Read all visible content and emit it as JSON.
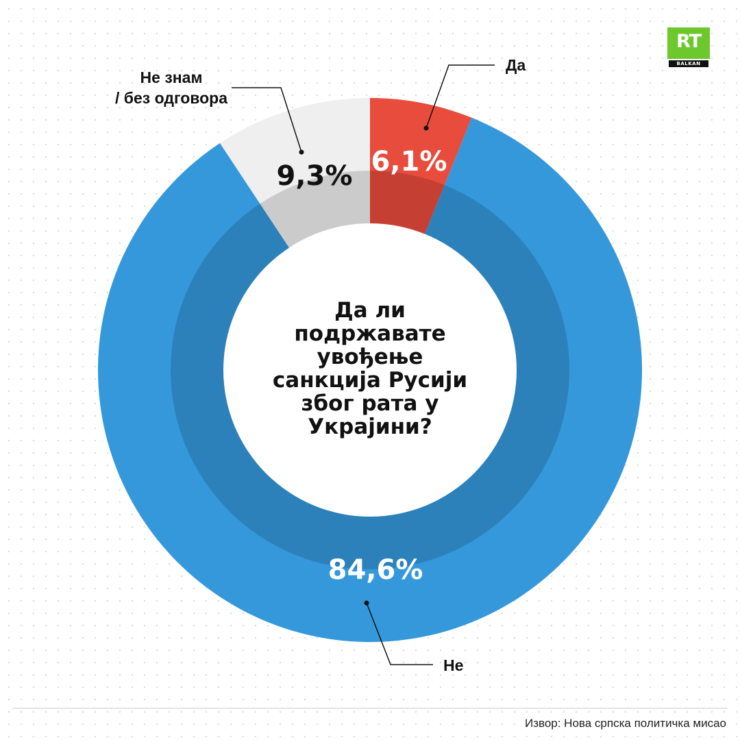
{
  "chart_data": {
    "type": "pie",
    "variant": "donut",
    "title": "Да ли подржавате увођење санкција Русији због рата у Украјини?",
    "title_lines": [
      "Да ли",
      "подржавате",
      "увођење",
      "санкција Русији",
      "због рата у",
      "Украјини?"
    ],
    "slices": [
      {
        "label": "Да",
        "value": 6.1,
        "value_label": "6,1%",
        "color": "#e84c3d"
      },
      {
        "label": "Не",
        "value": 84.6,
        "value_label": "84,6%",
        "color": "#3498db"
      },
      {
        "label_lines": [
          "Не знам",
          "/ без одговора"
        ],
        "value": 9.3,
        "value_label": "9,3%",
        "color": "#efefef"
      }
    ]
  },
  "logo": {
    "text": "RT",
    "subtext": "BALKAN",
    "color": "#6cc82c"
  },
  "source": "Извор: Нова српска политичка мисао"
}
